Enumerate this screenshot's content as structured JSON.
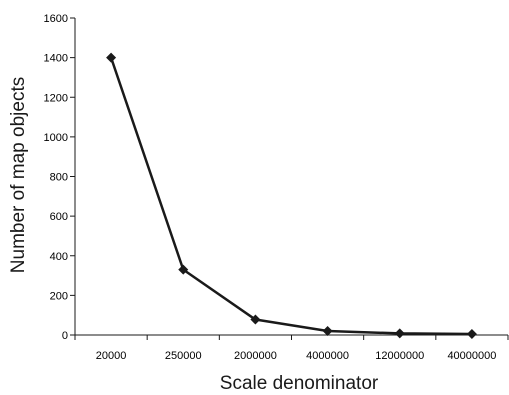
{
  "chart_data": {
    "type": "line",
    "title": "",
    "xlabel": "Scale denominator",
    "ylabel": "Number of map objects",
    "categories": [
      "20000",
      "250000",
      "2000000",
      "4000000",
      "12000000",
      "40000000"
    ],
    "series": [
      {
        "values": [
          1400,
          330,
          78,
          20,
          8,
          5
        ]
      }
    ],
    "ylim": [
      0,
      1600
    ],
    "yticks": [
      "0",
      "200",
      "400",
      "600",
      "800",
      "1000",
      "1200",
      "1400",
      "1600"
    ],
    "grid": false,
    "legend": "none",
    "marker": "diamond",
    "line_color": "#1a1a1a"
  }
}
